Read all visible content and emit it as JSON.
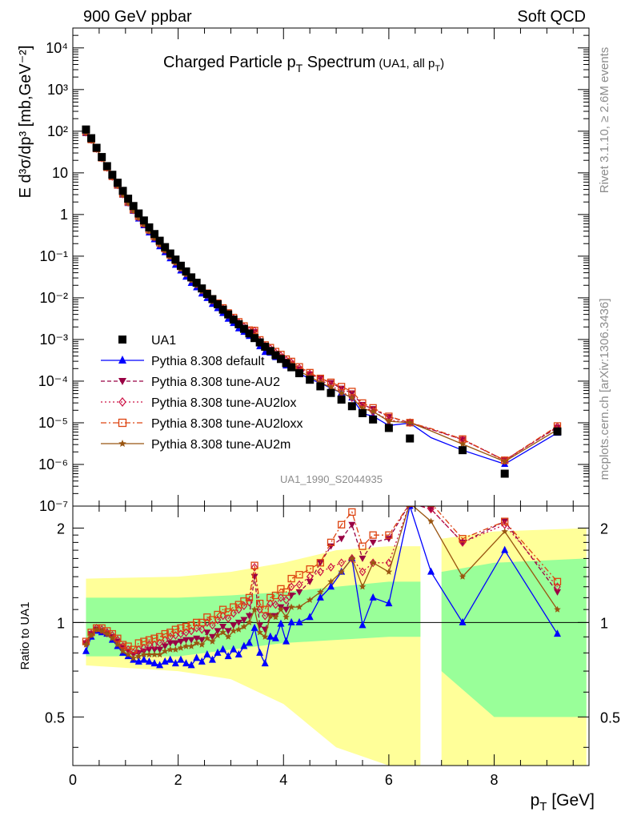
{
  "header": {
    "left": "900 GeV ppbar",
    "right": "Soft QCD"
  },
  "title": {
    "main_pre": "Charged Particle p",
    "main_sub": "T",
    "main_post": " Spectrum",
    "small_pre": "(UA1, all p",
    "small_sub": "T",
    "small_post": ")"
  },
  "side": {
    "rivet": "Rivet 3.1.10, ≥ 2.6M events",
    "mcplots": "mcplots.cern.ch [arXiv:1306.3436]"
  },
  "analysis_id": "UA1_1990_S2044935",
  "axes": {
    "top_ylabel": "E d³σ/dp³ [mb,GeV⁻²]",
    "bottom_ylabel": "Ratio to UA1",
    "xlabel": "p_T [GeV]",
    "top_yticks": [
      "10⁴",
      "10³",
      "10²",
      "10",
      "1",
      "10⁻¹",
      "10⁻²",
      "10⁻³",
      "10⁻⁴",
      "10⁻⁵",
      "10⁻⁶",
      "10⁻⁷"
    ],
    "ratio_yticks": [
      "2",
      "1",
      "0.5"
    ],
    "xticks": [
      "0",
      "2",
      "4",
      "6",
      "8"
    ]
  },
  "legend": [
    {
      "label": "UA1",
      "color": "#000000",
      "marker": "square"
    },
    {
      "label": "Pythia 8.308 default",
      "color": "#0000ff",
      "marker": "triangle-up"
    },
    {
      "label": "Pythia 8.308 tune-AU2",
      "color": "#990044",
      "marker": "triangle-down"
    },
    {
      "label": "Pythia 8.308 tune-AU2lox",
      "color": "#cc1144",
      "marker": "diamond-open"
    },
    {
      "label": "Pythia 8.308 tune-AU2loxx",
      "color": "#dd4411",
      "marker": "square-open"
    },
    {
      "label": "Pythia 8.308 tune-AU2m",
      "color": "#995511",
      "marker": "star"
    }
  ],
  "chart_data": {
    "type": "scatter",
    "title": "Charged Particle pT Spectrum (UA1, all pT)",
    "xlabel": "pT [GeV]",
    "ylabel": "E d3sigma/dp3 [mb,GeV-2]",
    "xlim": [
      0,
      9.8
    ],
    "ylim": [
      1e-07,
      30000.0
    ],
    "ylog": true,
    "ratio_ylim": [
      0.35,
      2.35
    ],
    "ratio_ylog": true,
    "x": [
      0.25,
      0.35,
      0.45,
      0.55,
      0.65,
      0.75,
      0.85,
      0.95,
      1.05,
      1.15,
      1.25,
      1.35,
      1.45,
      1.55,
      1.65,
      1.75,
      1.85,
      1.95,
      2.05,
      2.15,
      2.25,
      2.35,
      2.45,
      2.55,
      2.65,
      2.75,
      2.85,
      2.95,
      3.05,
      3.15,
      3.25,
      3.35,
      3.45,
      3.55,
      3.65,
      3.75,
      3.85,
      3.95,
      4.05,
      4.15,
      4.3,
      4.5,
      4.7,
      4.9,
      5.1,
      5.3,
      5.5,
      5.7,
      6.0,
      6.4,
      6.8,
      7.4,
      8.2,
      9.2
    ],
    "ua1": [
      110,
      68,
      40,
      24,
      14.5,
      9,
      5.8,
      3.7,
      2.4,
      1.6,
      1.06,
      0.72,
      0.49,
      0.34,
      0.235,
      0.165,
      0.116,
      0.083,
      0.059,
      0.043,
      0.031,
      0.023,
      0.0168,
      0.0124,
      0.0093,
      0.007,
      0.0052,
      0.004,
      0.003,
      0.00232,
      0.0018,
      0.0014,
      0.00108,
      0.00085,
      0.00067,
      0.00053,
      0.00042,
      0.00034,
      0.00027,
      0.000215,
      0.000155,
      0.000108,
      7.5e-05,
      5.2e-05,
      3.6e-05,
      2.5e-05,
      1.7e-05,
      1.2e-05,
      7.5e-06,
      4.2e-06,
      null,
      2.2e-06,
      6e-07,
      6.2e-06
    ],
    "ua1_ratio_bands": {
      "stat_syst_inner": [
        [
          0.25,
          0.78,
          1.2
        ],
        [
          2.0,
          0.78,
          1.2
        ],
        [
          3.0,
          0.82,
          1.22
        ],
        [
          4.0,
          0.86,
          1.25
        ],
        [
          5.0,
          0.88,
          1.3
        ],
        [
          6.0,
          0.9,
          1.35
        ],
        [
          6.6,
          0.9,
          1.35
        ],
        [
          7.0,
          0.7,
          1.45
        ],
        [
          8.0,
          0.5,
          1.55
        ],
        [
          9.75,
          0.5,
          1.6
        ]
      ],
      "total_outer": [
        [
          0.25,
          0.73,
          1.38
        ],
        [
          2.0,
          0.7,
          1.4
        ],
        [
          3.0,
          0.66,
          1.45
        ],
        [
          4.0,
          0.55,
          1.55
        ],
        [
          5.0,
          0.4,
          1.7
        ],
        [
          6.0,
          0.35,
          1.75
        ],
        [
          6.6,
          0.35,
          1.75
        ],
        [
          7.0,
          0.35,
          1.85
        ],
        [
          8.0,
          0.35,
          1.95
        ],
        [
          9.75,
          0.35,
          2.0
        ]
      ]
    },
    "series": [
      {
        "name": "Pythia 8.308 default",
        "ratio": [
          0.81,
          0.9,
          0.94,
          0.93,
          0.92,
          0.88,
          0.84,
          0.8,
          0.78,
          0.76,
          0.75,
          0.76,
          0.75,
          0.74,
          0.73,
          0.75,
          0.76,
          0.74,
          0.76,
          0.74,
          0.73,
          0.77,
          0.75,
          0.79,
          0.76,
          0.8,
          0.82,
          0.78,
          0.82,
          0.79,
          0.84,
          0.86,
          0.96,
          0.8,
          0.74,
          0.9,
          0.89,
          0.99,
          0.87,
          1.0,
          1.0,
          1.04,
          1.2,
          1.3,
          1.45,
          1.6,
          0.98,
          1.2,
          1.15,
          2.35,
          1.45,
          1.0,
          1.7,
          0.92
        ]
      },
      {
        "name": "Pythia 8.308 tune-AU2",
        "ratio": [
          0.86,
          0.92,
          0.95,
          0.94,
          0.92,
          0.9,
          0.87,
          0.83,
          0.81,
          0.79,
          0.8,
          0.81,
          0.82,
          0.82,
          0.82,
          0.84,
          0.86,
          0.86,
          0.87,
          0.88,
          0.88,
          0.89,
          0.88,
          0.93,
          0.9,
          0.94,
          0.97,
          0.94,
          0.98,
          1.0,
          1.02,
          1.05,
          1.4,
          0.98,
          0.95,
          1.05,
          1.05,
          1.12,
          1.1,
          1.22,
          1.25,
          1.35,
          1.55,
          1.75,
          1.85,
          2.05,
          1.6,
          1.8,
          1.85,
          2.4,
          2.3,
          1.8,
          2.1,
          1.25
        ]
      },
      {
        "name": "Pythia 8.308 tune-AU2lox",
        "ratio": [
          0.86,
          0.92,
          0.96,
          0.95,
          0.93,
          0.91,
          0.88,
          0.84,
          0.82,
          0.8,
          0.82,
          0.83,
          0.85,
          0.85,
          0.86,
          0.88,
          0.9,
          0.91,
          0.92,
          0.93,
          0.94,
          0.96,
          0.95,
          1.0,
          0.98,
          1.02,
          1.05,
          1.03,
          1.07,
          1.1,
          1.13,
          1.16,
          1.5,
          1.1,
          1.05,
          1.15,
          1.14,
          1.2,
          1.18,
          1.3,
          1.32,
          1.4,
          1.45,
          1.5,
          1.55,
          1.6,
          1.45,
          1.55,
          1.55,
          2.4,
          2.3,
          1.8,
          2.05,
          1.3
        ]
      },
      {
        "name": "Pythia 8.308 tune-AU2loxx",
        "ratio": [
          0.87,
          0.93,
          0.96,
          0.96,
          0.94,
          0.92,
          0.89,
          0.85,
          0.84,
          0.82,
          0.86,
          0.87,
          0.88,
          0.89,
          0.9,
          0.92,
          0.93,
          0.95,
          0.96,
          0.97,
          0.98,
          1.0,
          1.0,
          1.04,
          1.02,
          1.06,
          1.1,
          1.08,
          1.12,
          1.14,
          1.17,
          1.2,
          1.52,
          1.15,
          1.1,
          1.2,
          1.22,
          1.28,
          1.25,
          1.38,
          1.42,
          1.48,
          1.55,
          1.8,
          2.05,
          2.25,
          1.75,
          1.9,
          1.9,
          2.4,
          2.4,
          1.85,
          2.1,
          1.35
        ]
      },
      {
        "name": "Pythia 8.308 tune-AU2m",
        "ratio": [
          0.85,
          0.91,
          0.95,
          0.94,
          0.92,
          0.89,
          0.85,
          0.81,
          0.79,
          0.77,
          0.78,
          0.79,
          0.79,
          0.79,
          0.79,
          0.81,
          0.82,
          0.82,
          0.83,
          0.84,
          0.84,
          0.86,
          0.85,
          0.89,
          0.87,
          0.91,
          0.93,
          0.9,
          0.94,
          0.95,
          0.97,
          1.0,
          1.1,
          0.93,
          0.9,
          1.05,
          1.04,
          1.1,
          1.04,
          1.12,
          1.12,
          1.18,
          1.25,
          1.35,
          1.45,
          1.6,
          1.3,
          1.55,
          1.45,
          2.4,
          2.1,
          1.4,
          1.95,
          1.1
        ]
      }
    ]
  }
}
